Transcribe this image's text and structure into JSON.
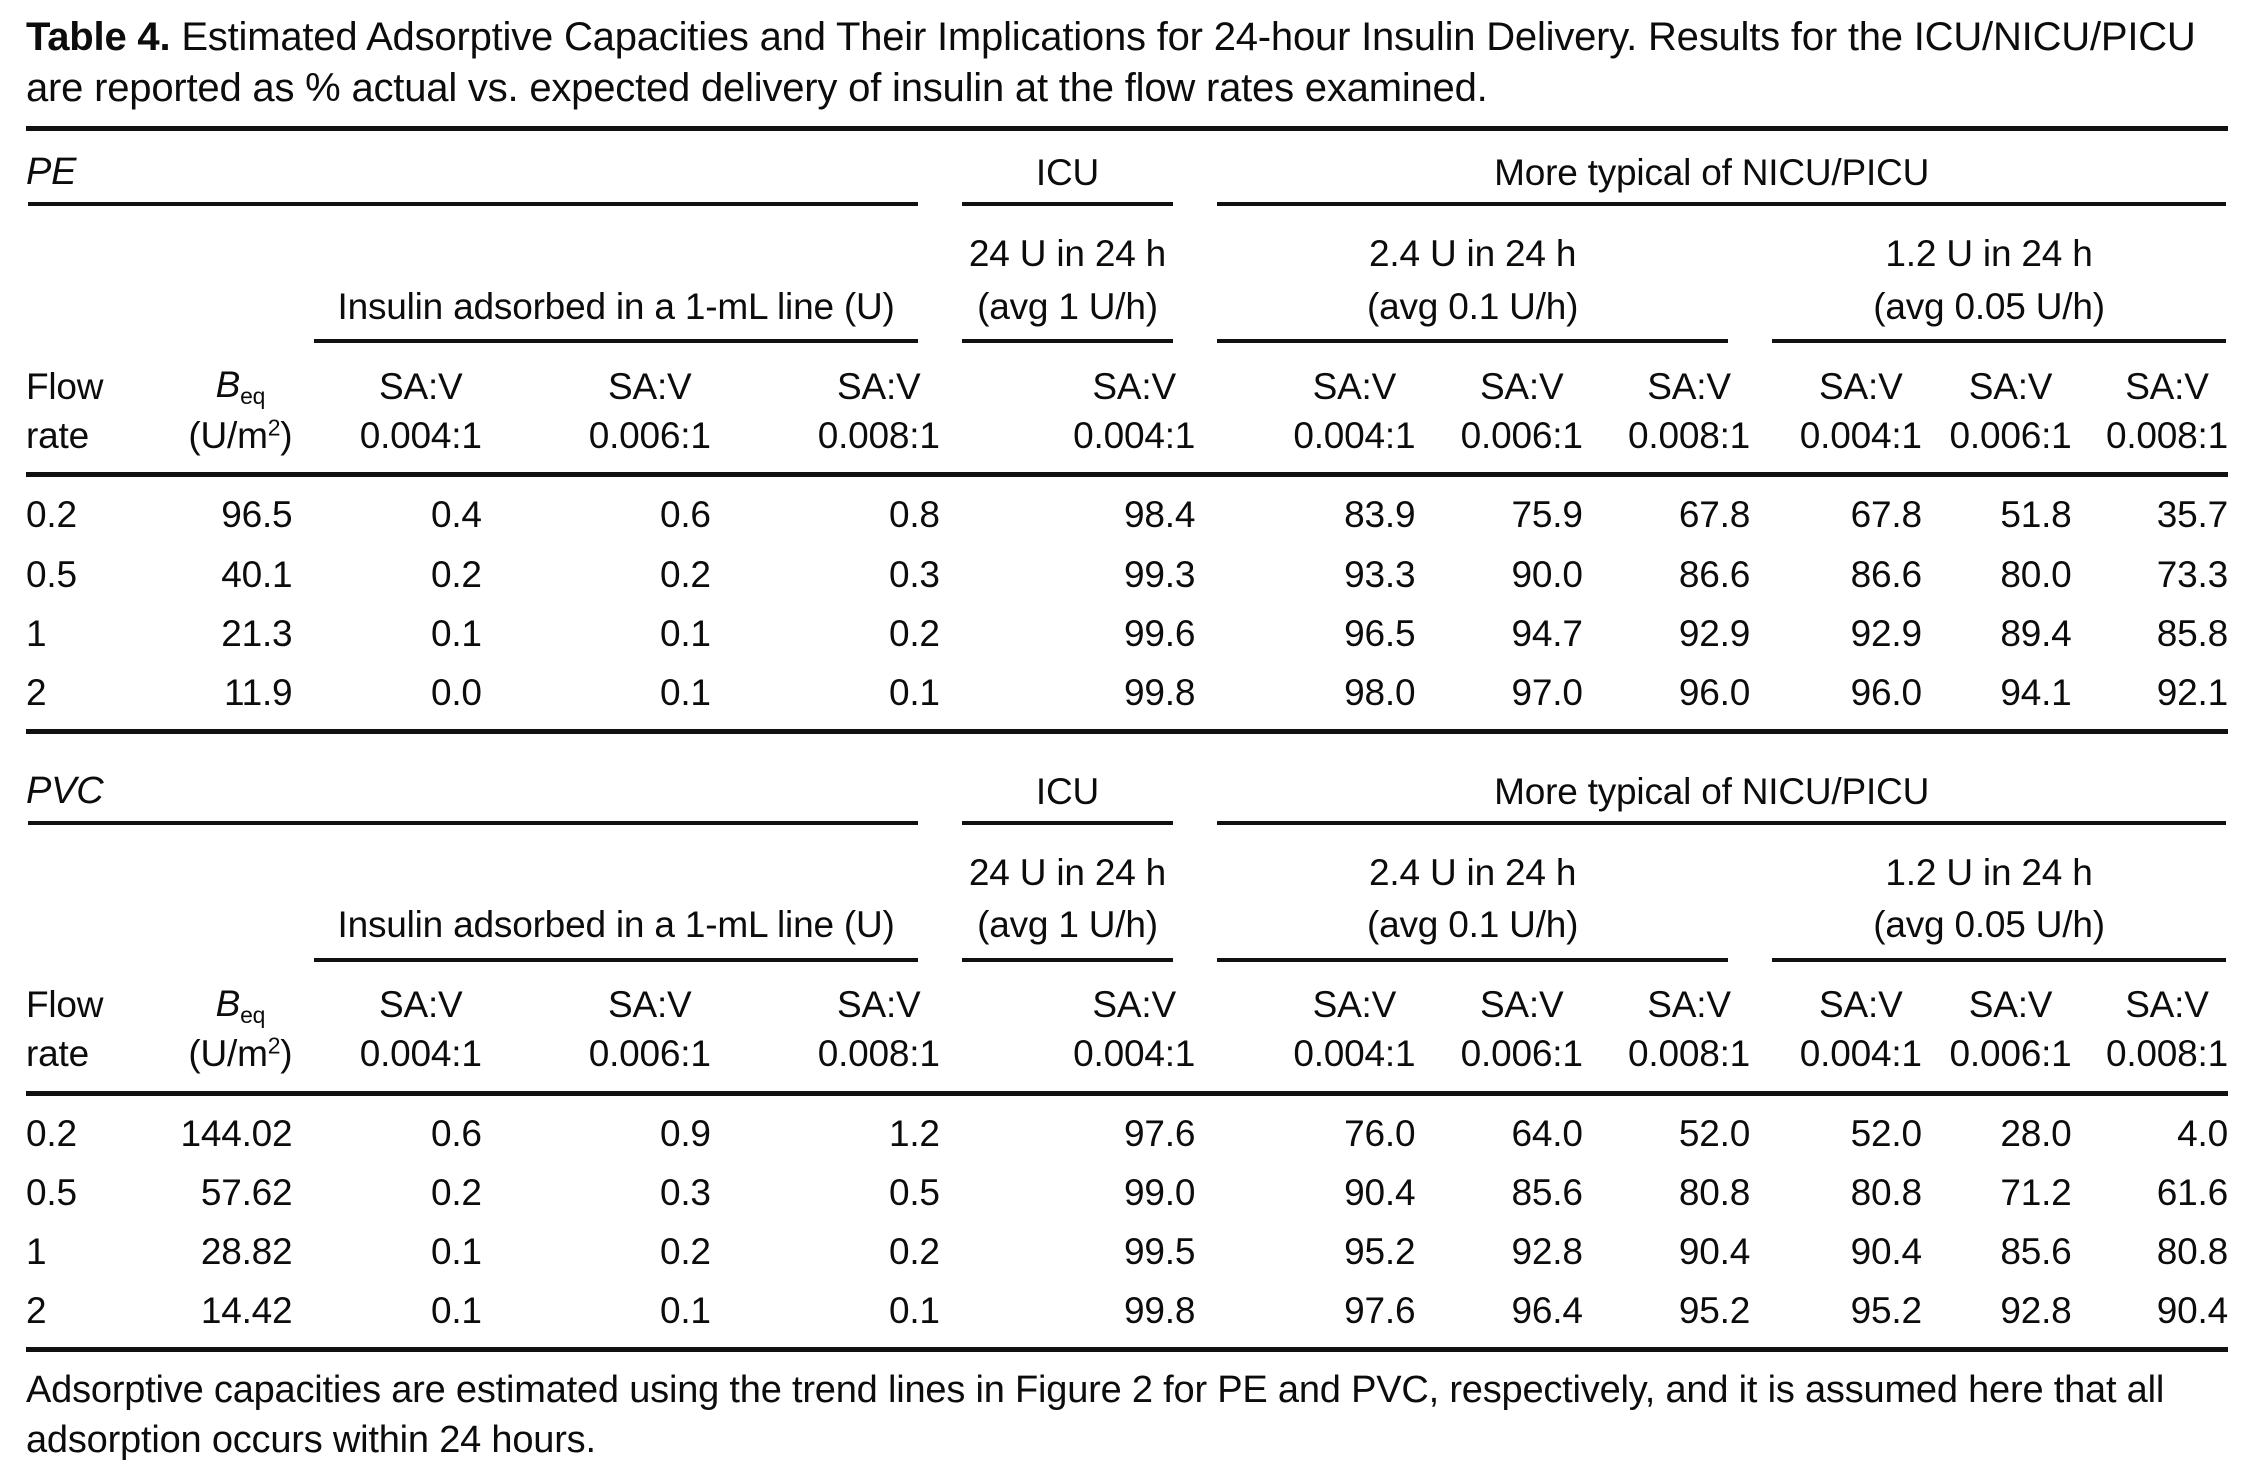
{
  "caption": {
    "label": "Table 4.",
    "text": "Estimated Adsorptive Capacities and Their Implications for 24-hour Insulin Delivery. Results for the ICU/NICU/PICU are reported as % actual vs. expected delivery of insulin at the flow rates examined."
  },
  "headers": {
    "icu": "ICU",
    "nicu": "More typical of NICU/PICU",
    "adsorbed": "Insulin adsorbed in a 1-mL line (U)",
    "icu_dose": {
      "line1": "24 U in 24 h",
      "line2": "(avg 1 U/h)"
    },
    "dose_24": {
      "line1": "2.4 U in 24 h",
      "line2": "(avg 0.1 U/h)"
    },
    "dose_12": {
      "line1": "1.2 U in 24 h",
      "line2": "(avg 0.05 U/h)"
    },
    "flow": {
      "line1": "Flow",
      "line2": "rate"
    },
    "beq": {
      "base": "B",
      "sub": "eq",
      "unit_pre": "(U/m",
      "sup": "2",
      "unit_post": ")"
    },
    "sav": [
      {
        "line1": "SA:V",
        "line2": "0.004:1"
      },
      {
        "line1": "SA:V",
        "line2": "0.006:1"
      },
      {
        "line1": "SA:V",
        "line2": "0.008:1"
      },
      {
        "line1": "SA:V",
        "line2": "0.004:1"
      },
      {
        "line1": "SA:V",
        "line2": "0.004:1"
      },
      {
        "line1": "SA:V",
        "line2": "0.006:1"
      },
      {
        "line1": "SA:V",
        "line2": "0.008:1"
      },
      {
        "line1": "SA:V",
        "line2": "0.004:1"
      },
      {
        "line1": "SA:V",
        "line2": "0.006:1"
      },
      {
        "line1": "SA:V",
        "line2": "0.008:1"
      }
    ]
  },
  "sections": [
    {
      "label": "PE",
      "rows": [
        [
          "0.2",
          "96.5",
          "0.4",
          "0.6",
          "0.8",
          "98.4",
          "83.9",
          "75.9",
          "67.8",
          "67.8",
          "51.8",
          "35.7"
        ],
        [
          "0.5",
          "40.1",
          "0.2",
          "0.2",
          "0.3",
          "99.3",
          "93.3",
          "90.0",
          "86.6",
          "86.6",
          "80.0",
          "73.3"
        ],
        [
          "1",
          "21.3",
          "0.1",
          "0.1",
          "0.2",
          "99.6",
          "96.5",
          "94.7",
          "92.9",
          "92.9",
          "89.4",
          "85.8"
        ],
        [
          "2",
          "11.9",
          "0.0",
          "0.1",
          "0.1",
          "99.8",
          "98.0",
          "97.0",
          "96.0",
          "96.0",
          "94.1",
          "92.1"
        ]
      ]
    },
    {
      "label": "PVC",
      "rows": [
        [
          "0.2",
          "144.02",
          "0.6",
          "0.9",
          "1.2",
          "97.6",
          "76.0",
          "64.0",
          "52.0",
          "52.0",
          "28.0",
          "4.0"
        ],
        [
          "0.5",
          "57.62",
          "0.2",
          "0.3",
          "0.5",
          "99.0",
          "90.4",
          "85.6",
          "80.8",
          "80.8",
          "71.2",
          "61.6"
        ],
        [
          "1",
          "28.82",
          "0.1",
          "0.2",
          "0.2",
          "99.5",
          "95.2",
          "92.8",
          "90.4",
          "90.4",
          "85.6",
          "80.8"
        ],
        [
          "2",
          "14.42",
          "0.1",
          "0.1",
          "0.1",
          "99.8",
          "97.6",
          "96.4",
          "95.2",
          "95.2",
          "92.8",
          "90.4"
        ]
      ]
    }
  ],
  "footnote": "Adsorptive capacities are estimated using the trend lines in Figure 2 for PE and PVC, respectively, and it is assumed here that all adsorption occurs within 24 hours."
}
